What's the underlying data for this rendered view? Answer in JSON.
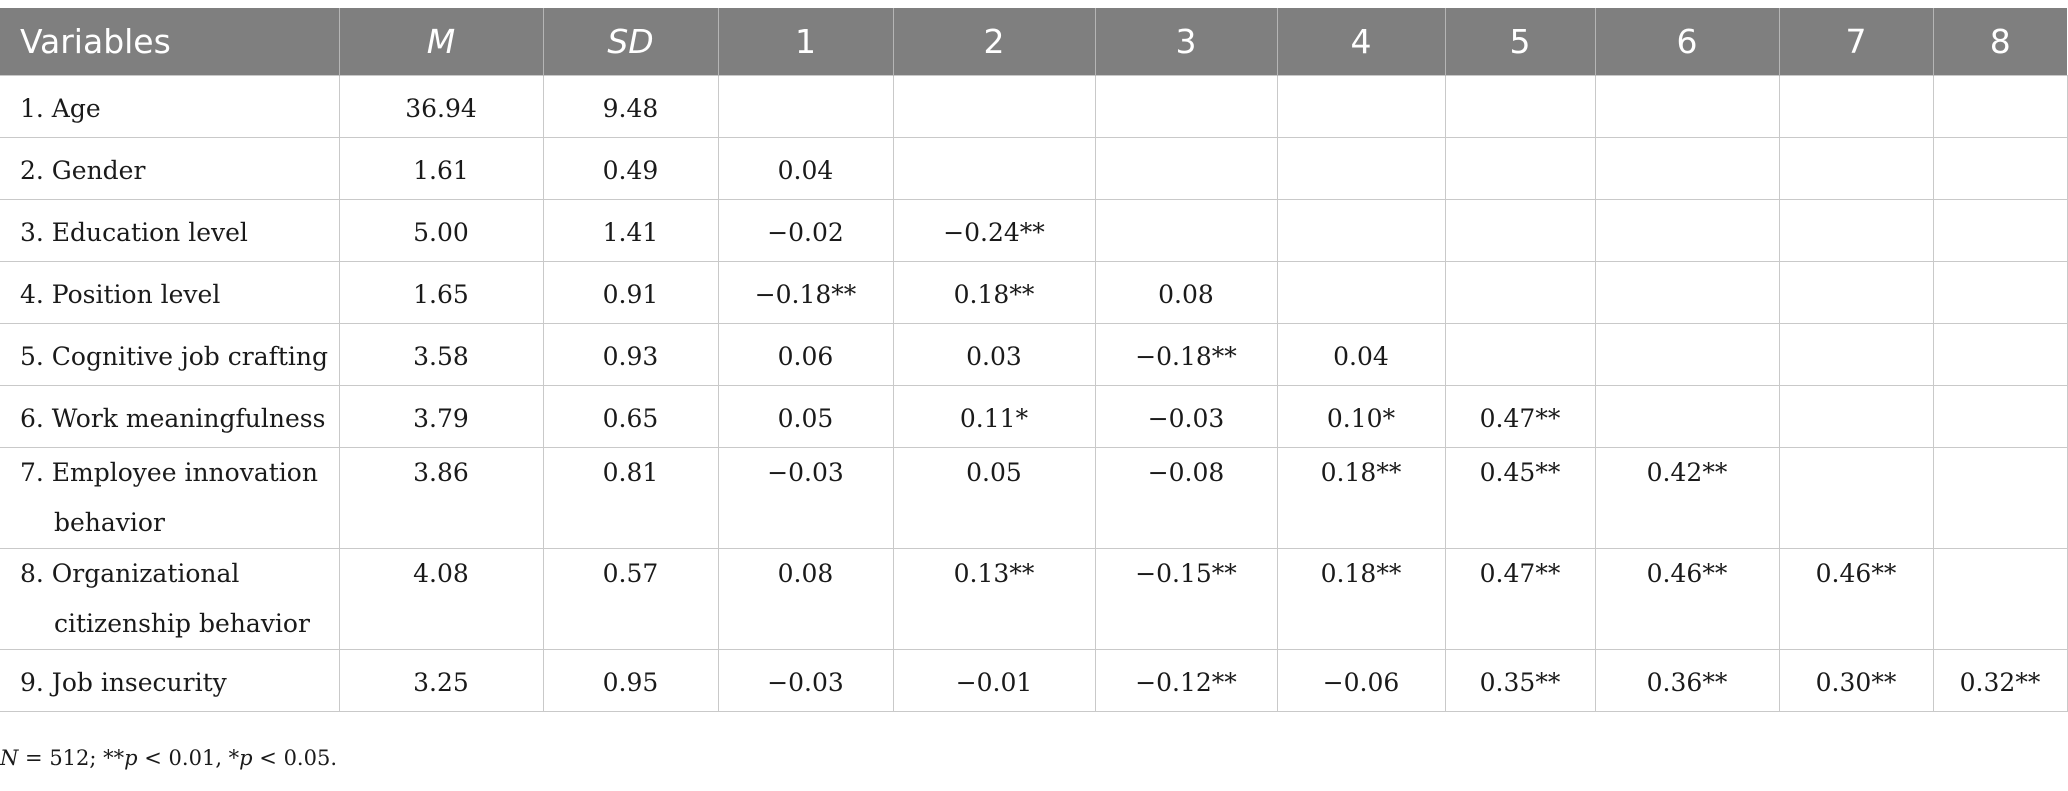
{
  "table": {
    "headers": [
      "Variables",
      "M",
      "SD",
      "1",
      "2",
      "3",
      "4",
      "5",
      "6",
      "7",
      "8"
    ],
    "rows": [
      {
        "label": [
          "1. Age"
        ],
        "cells": [
          "36.94",
          "9.48",
          "",
          "",
          "",
          "",
          "",
          "",
          "",
          ""
        ]
      },
      {
        "label": [
          "2. Gender"
        ],
        "cells": [
          "1.61",
          "0.49",
          "0.04",
          "",
          "",
          "",
          "",
          "",
          "",
          ""
        ]
      },
      {
        "label": [
          "3. Education level"
        ],
        "cells": [
          "5.00",
          "1.41",
          "−0.02",
          "−0.24**",
          "",
          "",
          "",
          "",
          "",
          ""
        ]
      },
      {
        "label": [
          "4. Position level"
        ],
        "cells": [
          "1.65",
          "0.91",
          "−0.18**",
          "0.18**",
          "0.08",
          "",
          "",
          "",
          "",
          ""
        ]
      },
      {
        "label": [
          "5. Cognitive job crafting"
        ],
        "cells": [
          "3.58",
          "0.93",
          "0.06",
          "0.03",
          "−0.18**",
          "0.04",
          "",
          "",
          "",
          ""
        ]
      },
      {
        "label": [
          "6. Work meaningfulness"
        ],
        "cells": [
          "3.79",
          "0.65",
          "0.05",
          "0.11*",
          "−0.03",
          "0.10*",
          "0.47**",
          "",
          "",
          ""
        ]
      },
      {
        "label": [
          "7. Employee innovation",
          "behavior"
        ],
        "cells": [
          "3.86",
          "0.81",
          "−0.03",
          "0.05",
          "−0.08",
          "0.18**",
          "0.45**",
          "0.42**",
          "",
          ""
        ]
      },
      {
        "label": [
          "8. Organizational",
          "citizenship behavior"
        ],
        "cells": [
          "4.08",
          "0.57",
          "0.08",
          "0.13**",
          "−0.15**",
          "0.18**",
          "0.47**",
          "0.46**",
          "0.46**",
          ""
        ]
      },
      {
        "label": [
          "9. Job insecurity"
        ],
        "cells": [
          "3.25",
          "0.95",
          "−0.03",
          "−0.01",
          "−0.12**",
          "−0.06",
          "0.35**",
          "0.36**",
          "0.30**",
          "0.32**"
        ]
      }
    ]
  },
  "note": {
    "n_symbol": "N",
    "n_text": " = 512; **",
    "p1_symbol": "p",
    "p1_text": " < 0.01, *",
    "p2_symbol": "p",
    "p2_text": " < 0.05."
  },
  "colors": {
    "header_bg": "#7f7f7f",
    "header_text": "#ffffff",
    "grid": "#c9c9c9"
  }
}
